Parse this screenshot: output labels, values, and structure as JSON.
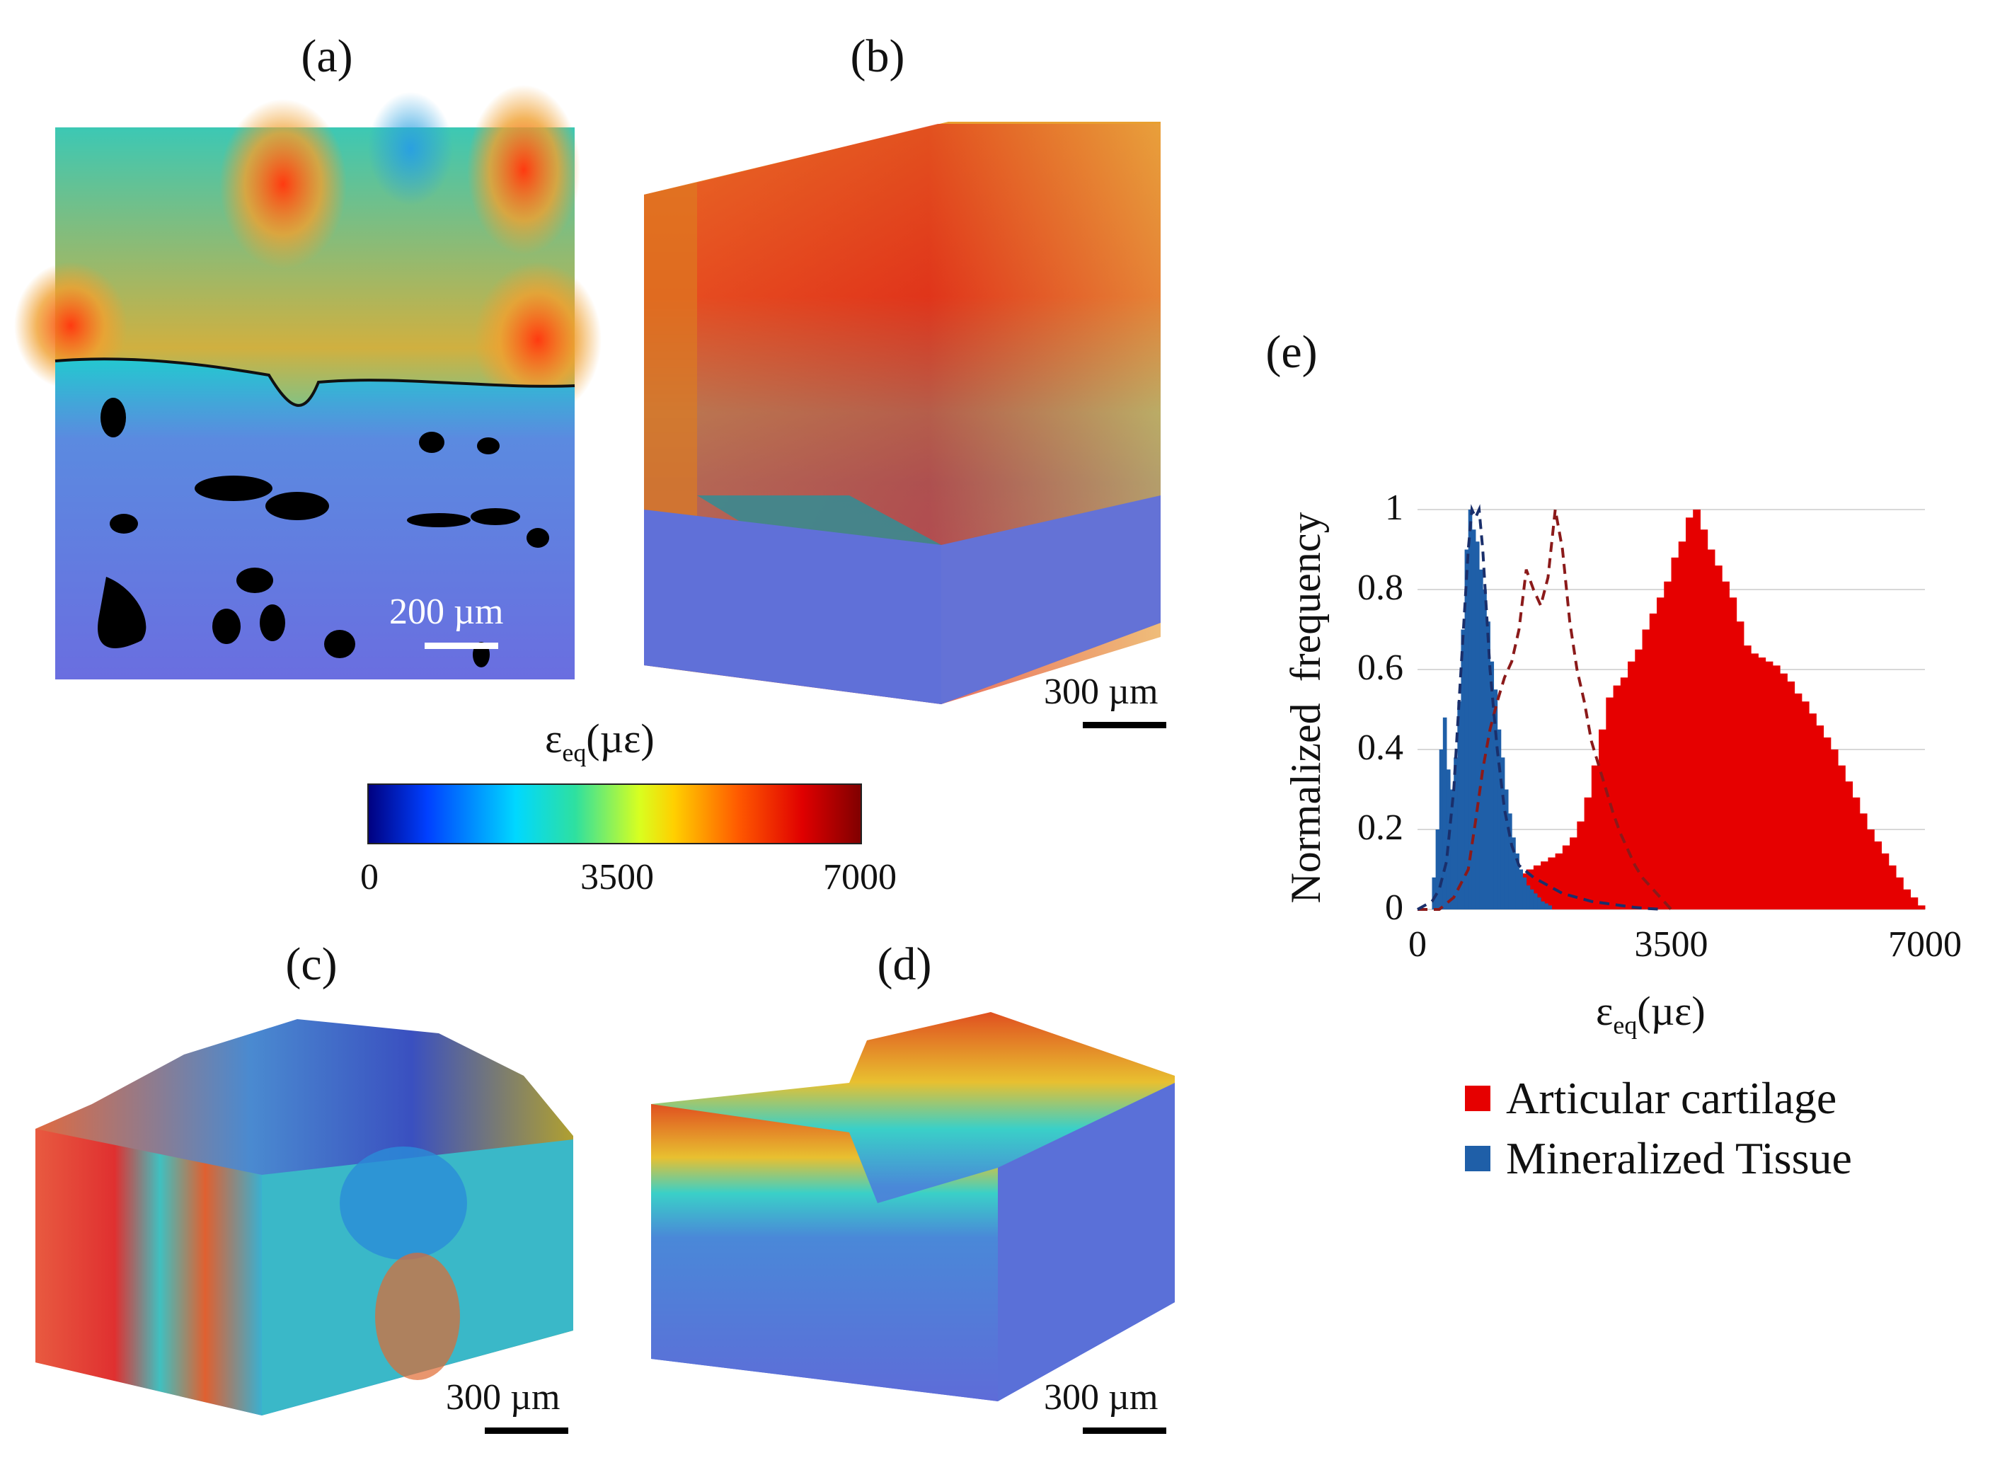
{
  "panels": {
    "a": {
      "label": "(a)",
      "scale": "200 µm"
    },
    "b": {
      "label": "(b)",
      "scale": "300 µm"
    },
    "c": {
      "label": "(c)",
      "scale": "300 µm"
    },
    "d": {
      "label": "(d)",
      "scale": "300 µm"
    },
    "e": {
      "label": "(e)"
    }
  },
  "colorbar": {
    "title_main": "ε",
    "title_sub": "eq",
    "title_unit": "(µε)",
    "ticks": [
      "0",
      "3500",
      "7000"
    ],
    "colors": [
      "#00007f",
      "#0040ff",
      "#00d8ff",
      "#2ee0a0",
      "#d8ff20",
      "#ffd000",
      "#ff5a00",
      "#e00000",
      "#7f0000"
    ]
  },
  "chart_data": {
    "type": "histogram",
    "title": "(e)",
    "xlabel_main": "ε",
    "xlabel_sub": "eq",
    "xlabel_unit": "(µε)",
    "ylabel": "Normalized  frequency",
    "xlim": [
      0,
      7000
    ],
    "ylim": [
      0,
      1
    ],
    "x_ticks": [
      "0",
      "3500",
      "7000"
    ],
    "y_ticks": [
      "0",
      "0.2",
      "0.4",
      "0.6",
      "0.8",
      "1"
    ],
    "bin_width": 100,
    "series": [
      {
        "name": "Articular cartilage",
        "color": "#e60000",
        "bin_starts": [
          600,
          700,
          800,
          900,
          1000,
          1100,
          1200,
          1300,
          1400,
          1500,
          1600,
          1700,
          1800,
          1900,
          2000,
          2100,
          2200,
          2300,
          2400,
          2500,
          2600,
          2700,
          2800,
          2900,
          3000,
          3100,
          3200,
          3300,
          3400,
          3500,
          3600,
          3700,
          3800,
          3900,
          4000,
          4100,
          4200,
          4300,
          4400,
          4500,
          4600,
          4700,
          4800,
          4900,
          5000,
          5100,
          5200,
          5300,
          5400,
          5500,
          5600,
          5700,
          5800,
          5900,
          6000,
          6100,
          6200,
          6300,
          6400,
          6500,
          6600,
          6700,
          6800,
          6900
        ],
        "values": [
          0.01,
          0.02,
          0.03,
          0.04,
          0.05,
          0.06,
          0.07,
          0.08,
          0.09,
          0.1,
          0.11,
          0.12,
          0.13,
          0.14,
          0.16,
          0.18,
          0.22,
          0.28,
          0.36,
          0.45,
          0.53,
          0.56,
          0.58,
          0.62,
          0.65,
          0.7,
          0.74,
          0.78,
          0.82,
          0.88,
          0.92,
          0.98,
          1.0,
          0.95,
          0.9,
          0.86,
          0.82,
          0.78,
          0.72,
          0.66,
          0.64,
          0.63,
          0.62,
          0.61,
          0.59,
          0.57,
          0.54,
          0.52,
          0.49,
          0.46,
          0.43,
          0.4,
          0.36,
          0.32,
          0.28,
          0.24,
          0.2,
          0.17,
          0.14,
          0.11,
          0.08,
          0.05,
          0.03,
          0.01
        ]
      },
      {
        "name": "Mineralized Tissue",
        "color": "#1f5fa8",
        "bin_starts": [
          200,
          250,
          300,
          350,
          400,
          450,
          500,
          550,
          600,
          650,
          700,
          750,
          800,
          850,
          900,
          950,
          1000,
          1050,
          1100,
          1150,
          1200,
          1250,
          1300,
          1350,
          1400,
          1450,
          1500,
          1550,
          1600,
          1650,
          1700,
          1750,
          1800
        ],
        "values": [
          0.08,
          0.2,
          0.4,
          0.48,
          0.35,
          0.3,
          0.38,
          0.52,
          0.7,
          0.9,
          1.0,
          0.95,
          0.92,
          0.85,
          0.8,
          0.72,
          0.62,
          0.55,
          0.45,
          0.38,
          0.3,
          0.24,
          0.18,
          0.14,
          0.1,
          0.08,
          0.06,
          0.05,
          0.04,
          0.03,
          0.02,
          0.015,
          0.01
        ]
      }
    ],
    "dashed_lines": [
      {
        "name": "cartilage-dashed",
        "color": "#8b1a1a",
        "x": [
          0,
          300,
          500,
          700,
          800,
          900,
          1000,
          1100,
          1200,
          1300,
          1400,
          1500,
          1600,
          1700,
          1800,
          1900,
          2000,
          2100,
          2200,
          2300,
          2400,
          2500,
          2600,
          2700,
          2800,
          2900,
          3000,
          3100,
          3200,
          3300,
          3400,
          3500
        ],
        "y": [
          0,
          0,
          0.03,
          0.1,
          0.22,
          0.35,
          0.45,
          0.52,
          0.58,
          0.62,
          0.7,
          0.85,
          0.8,
          0.76,
          0.83,
          1.0,
          0.9,
          0.72,
          0.6,
          0.52,
          0.42,
          0.36,
          0.3,
          0.24,
          0.19,
          0.15,
          0.11,
          0.08,
          0.06,
          0.04,
          0.02,
          0
        ]
      },
      {
        "name": "mineralized-dashed",
        "color": "#1a2f6b",
        "x": [
          0,
          200,
          300,
          400,
          500,
          600,
          700,
          750,
          800,
          850,
          900,
          950,
          1000,
          1100,
          1200,
          1300,
          1400,
          1600,
          1800,
          2000,
          2200,
          2400,
          2600,
          2800,
          3000,
          3200,
          3400
        ],
        "y": [
          0,
          0.02,
          0.05,
          0.12,
          0.3,
          0.6,
          0.9,
          1.0,
          0.98,
          1.0,
          0.9,
          0.75,
          0.6,
          0.4,
          0.25,
          0.16,
          0.11,
          0.08,
          0.06,
          0.04,
          0.03,
          0.02,
          0.015,
          0.01,
          0.005,
          0.002,
          0
        ]
      }
    ],
    "legend": [
      {
        "label": "Articular cartilage",
        "color": "#e60000"
      },
      {
        "label": "Mineralized Tissue",
        "color": "#1f5fa8"
      }
    ]
  }
}
